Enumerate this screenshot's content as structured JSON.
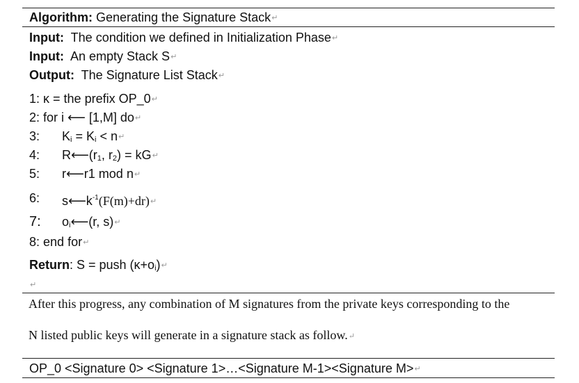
{
  "algorithm": {
    "title_label": "Algorithm:",
    "title": "Generating the Signature Stack",
    "inputs": [
      {
        "label": "Input:",
        "text": "The condition we defined in Initialization Phase"
      },
      {
        "label": "Input:",
        "text": "An empty Stack S"
      }
    ],
    "output": {
      "label": "Output:",
      "text": "The Signature List Stack"
    },
    "steps": {
      "s1": {
        "num": "1:",
        "text": "κ  =  the prefix OP_0"
      },
      "s2": {
        "num": "2:",
        "text": "for i  ⟵  [1,M]  do"
      },
      "s3": {
        "num": "3:",
        "pre": "K",
        "sub1": "i",
        "mid": " = K",
        "sub2": "i",
        "post": " < n"
      },
      "s4": {
        "num": "4:",
        "pre": "R⟵(r",
        "sub1": "1",
        "mid": ", r",
        "sub2": "2",
        "post": ") = kG"
      },
      "s5": {
        "num": "5:",
        "text": "r⟵r1 mod n"
      },
      "s6": {
        "num": "6:",
        "pre": "s⟵k",
        "sup": "-1",
        "post": "(F(m)+dr)"
      },
      "s7": {
        "num": "7:",
        "pre": "o",
        "sub": "i",
        "post": "⟵(r, s)"
      },
      "s8": {
        "num": "8:",
        "text": "end for"
      }
    },
    "return": {
      "label": "Return",
      "pre": ": S = push (κ+o",
      "sub": "i",
      "post": ")"
    }
  },
  "paragraph": {
    "line1": "After this progress, any combination of M signatures from the private keys corresponding to the",
    "line2": "N listed public keys will generate in a signature stack as follow."
  },
  "stack_line": "OP_0 <Signature 0> <Signature 1>…<Signature M-1><Signature M>",
  "para_mark": "↵"
}
